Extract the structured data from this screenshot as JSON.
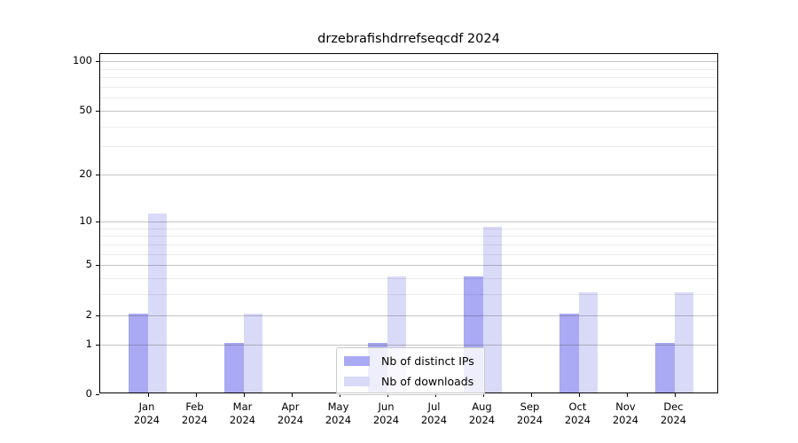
{
  "chart_data": {
    "type": "bar",
    "title": "drzebrafishdrrefseqcdf 2024",
    "year": "2024",
    "categories": [
      "Jan",
      "Feb",
      "Mar",
      "Apr",
      "May",
      "Jun",
      "Jul",
      "Aug",
      "Sep",
      "Oct",
      "Nov",
      "Dec"
    ],
    "series": [
      {
        "name": "Nb of distinct IPs",
        "color": "#a9a9f4",
        "values": [
          2,
          0,
          1,
          0,
          0,
          1,
          0,
          4,
          0,
          2,
          0,
          1
        ]
      },
      {
        "name": "Nb of downloads",
        "color": "#d9d9f8",
        "values": [
          11,
          0,
          2,
          0,
          0,
          4,
          0,
          9,
          0,
          3,
          0,
          3
        ]
      }
    ],
    "y_scale": "log1p",
    "y_ticks": [
      0,
      1,
      2,
      5,
      10,
      20,
      50,
      100
    ],
    "y_minor_ticks": [
      3,
      4,
      6,
      7,
      8,
      9,
      30,
      40,
      60,
      70,
      80,
      90
    ],
    "ylim": [
      0,
      110
    ],
    "xlabel": "",
    "ylabel": "",
    "grid": true,
    "legend_position": "bottom-center"
  },
  "colors": {
    "axis": "#000000",
    "major_grid": "#c6c6c6",
    "minor_grid": "#e5e5e5",
    "legend_border": "#cccccc",
    "distinct_ips_bar": "#a9a9f4",
    "downloads_bar": "#d9d9f8"
  }
}
